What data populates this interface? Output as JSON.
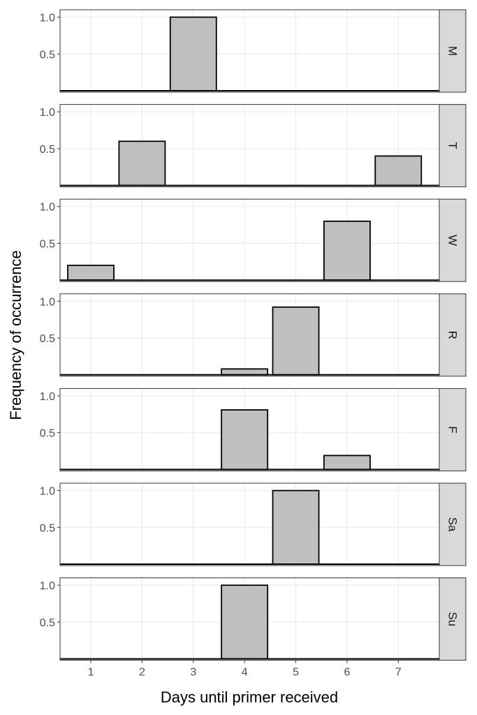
{
  "chart_data": {
    "type": "bar",
    "facet_layout": "vertical, one panel per day, strip labels on right",
    "xlabel": "Days until primer received",
    "ylabel": "Frequency of occurrence",
    "x_ticks": [
      1,
      2,
      3,
      4,
      5,
      6,
      7
    ],
    "xlim": [
      0.4,
      7.8
    ],
    "y_ticks": [
      0.5,
      1.0
    ],
    "y_tick_labels": [
      "0.5",
      "1.0"
    ],
    "ylim": [
      0,
      1.1
    ],
    "grid": true,
    "colors": {
      "bar_fill": "#bfbfbf",
      "bar_stroke": "#000000",
      "grid": "#ebebeb",
      "panel_border": "#333333",
      "strip_fill": "#d9d9d9"
    },
    "facets": [
      {
        "label": "M",
        "bars": [
          {
            "x": 3,
            "y": 1.0
          }
        ]
      },
      {
        "label": "T",
        "bars": [
          {
            "x": 2,
            "y": 0.6
          },
          {
            "x": 7,
            "y": 0.4
          }
        ]
      },
      {
        "label": "W",
        "bars": [
          {
            "x": 1,
            "y": 0.2
          },
          {
            "x": 6,
            "y": 0.8
          }
        ]
      },
      {
        "label": "R",
        "bars": [
          {
            "x": 4,
            "y": 0.08
          },
          {
            "x": 5,
            "y": 0.92
          }
        ]
      },
      {
        "label": "F",
        "bars": [
          {
            "x": 4,
            "y": 0.81
          },
          {
            "x": 6,
            "y": 0.19
          }
        ]
      },
      {
        "label": "Sa",
        "bars": [
          {
            "x": 5,
            "y": 1.0
          }
        ]
      },
      {
        "label": "Su",
        "bars": [
          {
            "x": 4,
            "y": 1.0
          }
        ]
      }
    ]
  }
}
